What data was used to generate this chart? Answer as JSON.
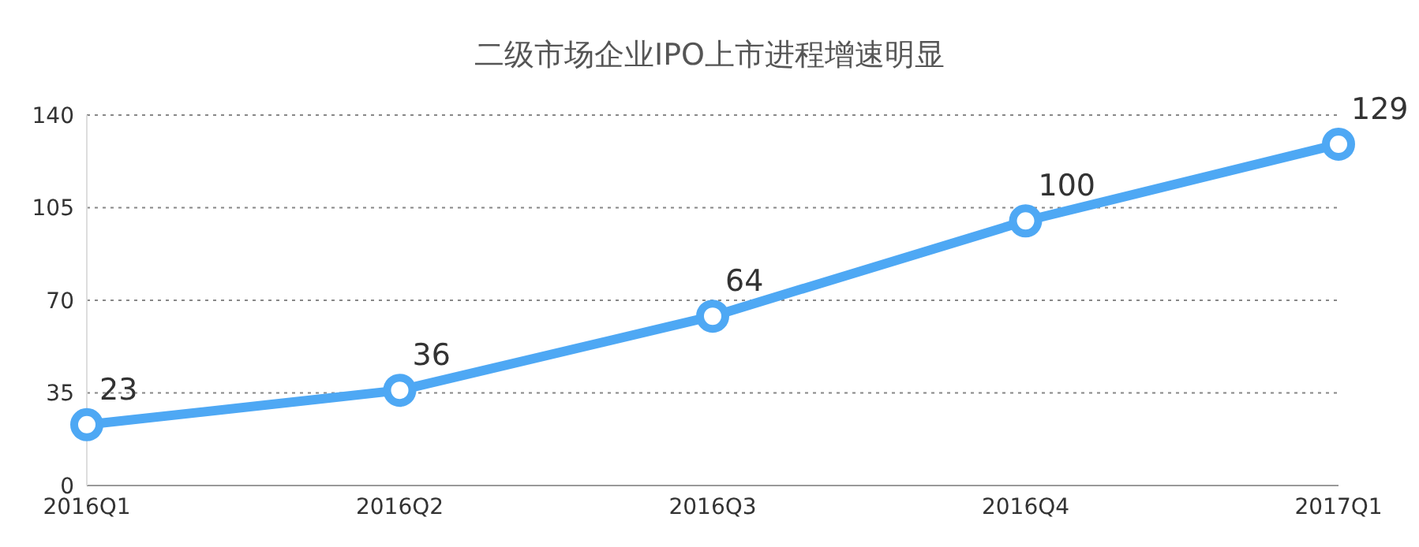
{
  "chart_data": {
    "type": "line",
    "title": "二级市场企业IPO上市进程增速明显",
    "categories": [
      "2016Q1",
      "2016Q2",
      "2016Q3",
      "2016Q4",
      "2017Q1"
    ],
    "series": [
      {
        "color": "#4ea8f4",
        "values": [
          23,
          36,
          64,
          100,
          129
        ]
      }
    ],
    "ylim": [
      0,
      140
    ],
    "yticks": [
      0,
      35,
      70,
      105,
      140
    ],
    "grid": "y",
    "marker": "circle",
    "line_style": "solid",
    "data_labels": true
  }
}
